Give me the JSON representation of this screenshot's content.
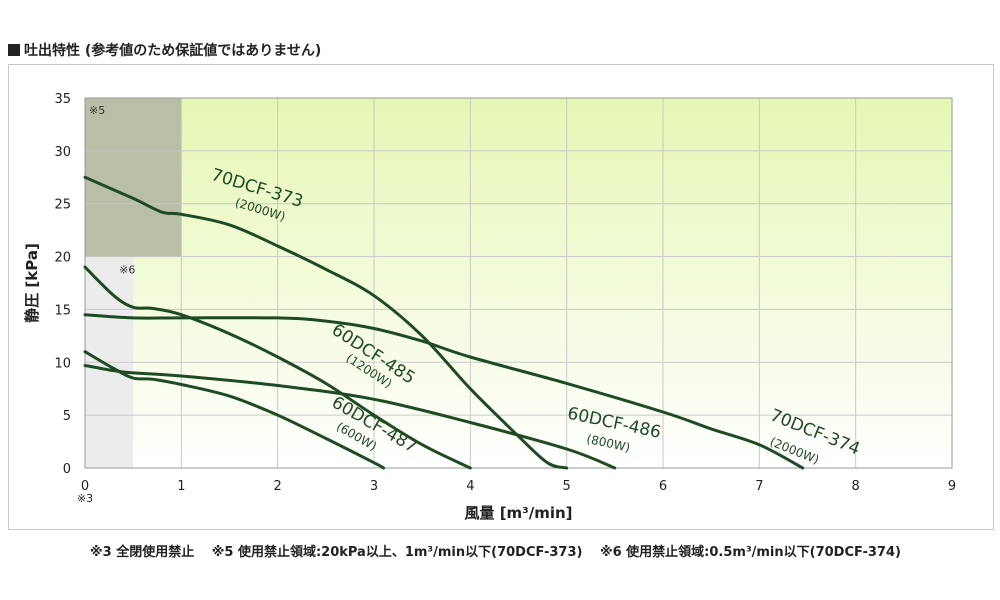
{
  "heading": "吐出特性 (参考値のため保証値ではありません)",
  "notes": "※3 全閉使用禁止　 ※5 使用禁止領域:20kPa以上、1m³/min以下(70DCF-373)　 ※6 使用禁止領域:0.5m³/min以下(70DCF-374)",
  "chart_data": {
    "type": "line",
    "xlabel": "風量 [m³/min]",
    "ylabel": "静圧 [kPa]",
    "xlim": [
      0,
      9
    ],
    "ylim": [
      0,
      35
    ],
    "x_ticks": [
      "0",
      "1",
      "2",
      "3",
      "4",
      "5",
      "6",
      "7",
      "8",
      "9"
    ],
    "y_ticks": [
      "0",
      "5",
      "10",
      "15",
      "20",
      "25",
      "30",
      "35"
    ],
    "x_origin_note": "※3",
    "grid": true,
    "colors": {
      "line": "#1f4a25",
      "line_light": "#5a7a5c",
      "region5": "#b9bfa6",
      "region6": "#ececec",
      "bg_top": "#e6f7b4",
      "bg_bottom": "#ffffff",
      "label": "#1f4a25"
    },
    "regions": [
      {
        "label": "※5",
        "x": [
          0,
          1
        ],
        "y": [
          20,
          35
        ]
      },
      {
        "label": "※6",
        "x": [
          0,
          0.5
        ],
        "y": [
          0,
          20
        ]
      }
    ],
    "series": [
      {
        "name": "70DCF-373",
        "sub": "(2000W)",
        "points": [
          [
            0,
            27.5
          ],
          [
            0.5,
            25.5
          ],
          [
            0.8,
            24.2
          ],
          [
            1,
            24
          ],
          [
            1.5,
            23
          ],
          [
            2,
            21
          ],
          [
            2.5,
            18.8
          ],
          [
            3,
            16.3
          ],
          [
            3.5,
            12.5
          ],
          [
            4,
            7.5
          ],
          [
            4.5,
            3
          ],
          [
            4.8,
            0.5
          ],
          [
            5,
            0
          ]
        ]
      },
      {
        "name": "60DCF-485",
        "sub": "(1200W)",
        "points": [
          [
            0,
            19
          ],
          [
            0.3,
            16.3
          ],
          [
            0.5,
            15.2
          ],
          [
            0.7,
            15.1
          ],
          [
            1,
            14.5
          ],
          [
            1.5,
            12.7
          ],
          [
            2,
            10.5
          ],
          [
            2.5,
            8
          ],
          [
            3,
            5
          ],
          [
            3.5,
            2.2
          ],
          [
            4,
            0
          ]
        ]
      },
      {
        "name": "70DCF-374",
        "sub": "(2000W)",
        "points": [
          [
            0,
            14.5
          ],
          [
            0.5,
            14.2
          ],
          [
            1,
            14.2
          ],
          [
            2,
            14.2
          ],
          [
            2.5,
            13.9
          ],
          [
            3,
            13.2
          ],
          [
            3.5,
            12
          ],
          [
            4,
            10.5
          ],
          [
            5,
            8
          ],
          [
            6,
            5.3
          ],
          [
            6.5,
            3.7
          ],
          [
            7,
            2.2
          ],
          [
            7.45,
            0
          ]
        ]
      },
      {
        "name": "60DCF-486",
        "sub": "(800W)",
        "points": [
          [
            0,
            9.7
          ],
          [
            0.3,
            9.2
          ],
          [
            0.5,
            9
          ],
          [
            1,
            8.7
          ],
          [
            2,
            7.8
          ],
          [
            3,
            6.5
          ],
          [
            4,
            4.3
          ],
          [
            5,
            1.8
          ],
          [
            5.5,
            0
          ]
        ]
      },
      {
        "name": "60DCF-487",
        "sub": "(600W)",
        "points": [
          [
            0,
            11
          ],
          [
            0.3,
            9.4
          ],
          [
            0.5,
            8.5
          ],
          [
            0.7,
            8.4
          ],
          [
            1,
            7.9
          ],
          [
            1.5,
            6.8
          ],
          [
            2,
            5
          ],
          [
            2.5,
            2.8
          ],
          [
            3,
            0.5
          ],
          [
            3.1,
            0
          ]
        ]
      }
    ]
  }
}
